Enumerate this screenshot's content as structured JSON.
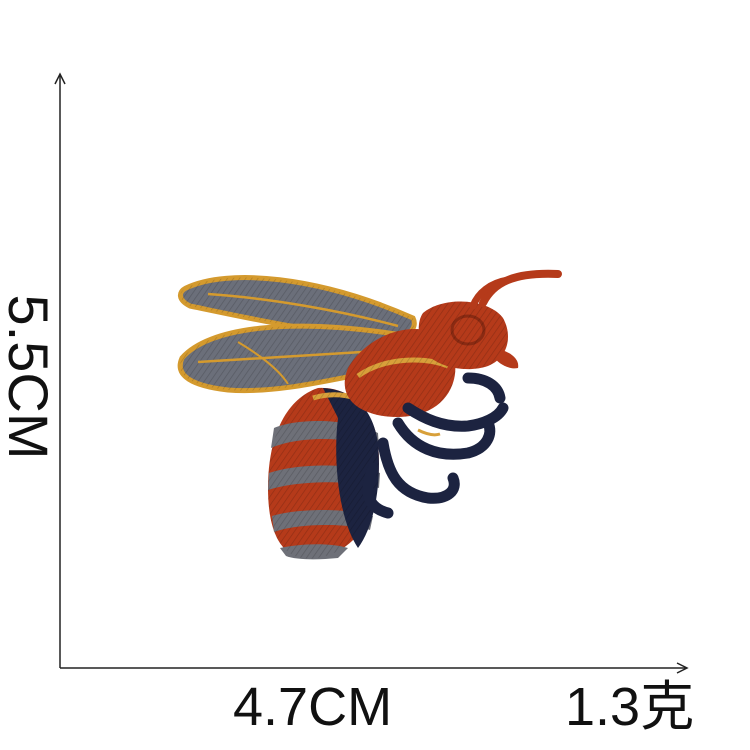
{
  "dimensions": {
    "height": "5.5CM",
    "width": "4.7CM",
    "weight": "1.3克"
  },
  "image": {
    "subject": "embroidered bee patch",
    "colors": {
      "wing_gray": "#6b6f7a",
      "wing_outline": "#d49a2e",
      "body_red": "#b53a1a",
      "body_navy": "#1c2340",
      "stripe_gray": "#6e7078",
      "accent_gold": "#d8a03a"
    }
  }
}
